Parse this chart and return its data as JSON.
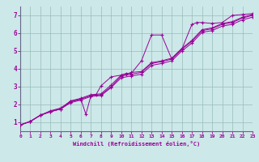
{
  "title": "",
  "xlabel": "Windchill (Refroidissement éolien,°C)",
  "ylabel": "",
  "xlim": [
    0,
    23
  ],
  "ylim": [
    0.5,
    7.5
  ],
  "xticks": [
    0,
    1,
    2,
    3,
    4,
    5,
    6,
    7,
    8,
    9,
    10,
    11,
    12,
    13,
    14,
    15,
    16,
    17,
    18,
    19,
    20,
    21,
    22,
    23
  ],
  "yticks": [
    1,
    2,
    3,
    4,
    5,
    6,
    7
  ],
  "bg_color": "#cce8e8",
  "line_color": "#990099",
  "grid_color": "#99bbbb",
  "spine_color": "#666688",
  "series": [
    [
      0.0,
      0.85
    ],
    [
      1.0,
      1.05
    ],
    [
      2.0,
      1.4
    ],
    [
      3.0,
      1.6
    ],
    [
      4.0,
      1.75
    ],
    [
      5.0,
      2.2
    ],
    [
      6.0,
      2.3
    ],
    [
      6.5,
      1.45
    ],
    [
      7.0,
      2.5
    ],
    [
      7.5,
      2.55
    ],
    [
      8.0,
      3.05
    ],
    [
      9.0,
      3.55
    ],
    [
      10.0,
      3.65
    ],
    [
      10.5,
      3.75
    ],
    [
      11.0,
      3.75
    ],
    [
      12.0,
      4.45
    ],
    [
      13.0,
      5.9
    ],
    [
      14.0,
      5.9
    ],
    [
      15.0,
      4.55
    ],
    [
      16.0,
      5.1
    ],
    [
      17.0,
      6.5
    ],
    [
      17.5,
      6.6
    ],
    [
      18.0,
      6.6
    ],
    [
      19.0,
      6.55
    ],
    [
      20.0,
      6.6
    ],
    [
      21.0,
      7.0
    ],
    [
      22.0,
      7.05
    ],
    [
      23.0,
      7.1
    ]
  ],
  "series2": [
    [
      0.0,
      0.85
    ],
    [
      1.0,
      1.05
    ],
    [
      2.0,
      1.4
    ],
    [
      3.0,
      1.65
    ],
    [
      4.0,
      1.8
    ],
    [
      5.0,
      2.2
    ],
    [
      6.0,
      2.35
    ],
    [
      7.0,
      2.55
    ],
    [
      8.0,
      2.6
    ],
    [
      9.0,
      3.1
    ],
    [
      10.0,
      3.65
    ],
    [
      10.5,
      3.7
    ],
    [
      11.0,
      3.8
    ],
    [
      12.0,
      3.85
    ],
    [
      13.0,
      4.35
    ],
    [
      14.0,
      4.45
    ],
    [
      15.0,
      4.6
    ],
    [
      16.0,
      5.15
    ],
    [
      17.0,
      5.6
    ],
    [
      18.0,
      6.2
    ],
    [
      19.0,
      6.3
    ],
    [
      20.0,
      6.55
    ],
    [
      21.0,
      6.65
    ],
    [
      22.0,
      6.9
    ],
    [
      23.0,
      7.05
    ]
  ],
  "series3": [
    [
      0.0,
      0.85
    ],
    [
      1.0,
      1.05
    ],
    [
      2.0,
      1.4
    ],
    [
      3.0,
      1.6
    ],
    [
      4.0,
      1.75
    ],
    [
      5.0,
      2.15
    ],
    [
      6.0,
      2.3
    ],
    [
      7.0,
      2.5
    ],
    [
      8.0,
      2.55
    ],
    [
      9.0,
      3.0
    ],
    [
      10.0,
      3.6
    ],
    [
      11.0,
      3.7
    ],
    [
      12.0,
      3.8
    ],
    [
      13.0,
      4.3
    ],
    [
      14.0,
      4.4
    ],
    [
      15.0,
      4.55
    ],
    [
      16.0,
      5.1
    ],
    [
      17.0,
      5.55
    ],
    [
      18.0,
      6.15
    ],
    [
      19.0,
      6.25
    ],
    [
      20.0,
      6.5
    ],
    [
      21.0,
      6.6
    ],
    [
      22.0,
      6.85
    ],
    [
      23.0,
      7.0
    ]
  ],
  "series4": [
    [
      0.0,
      0.85
    ],
    [
      1.0,
      1.05
    ],
    [
      2.0,
      1.4
    ],
    [
      3.0,
      1.6
    ],
    [
      4.0,
      1.75
    ],
    [
      5.0,
      2.1
    ],
    [
      6.0,
      2.25
    ],
    [
      7.0,
      2.45
    ],
    [
      8.0,
      2.5
    ],
    [
      9.0,
      2.95
    ],
    [
      10.0,
      3.5
    ],
    [
      11.0,
      3.6
    ],
    [
      12.0,
      3.7
    ],
    [
      13.0,
      4.2
    ],
    [
      14.0,
      4.3
    ],
    [
      15.0,
      4.45
    ],
    [
      16.0,
      5.0
    ],
    [
      17.0,
      5.45
    ],
    [
      18.0,
      6.05
    ],
    [
      19.0,
      6.15
    ],
    [
      20.0,
      6.4
    ],
    [
      21.0,
      6.5
    ],
    [
      22.0,
      6.75
    ],
    [
      23.0,
      6.9
    ]
  ]
}
